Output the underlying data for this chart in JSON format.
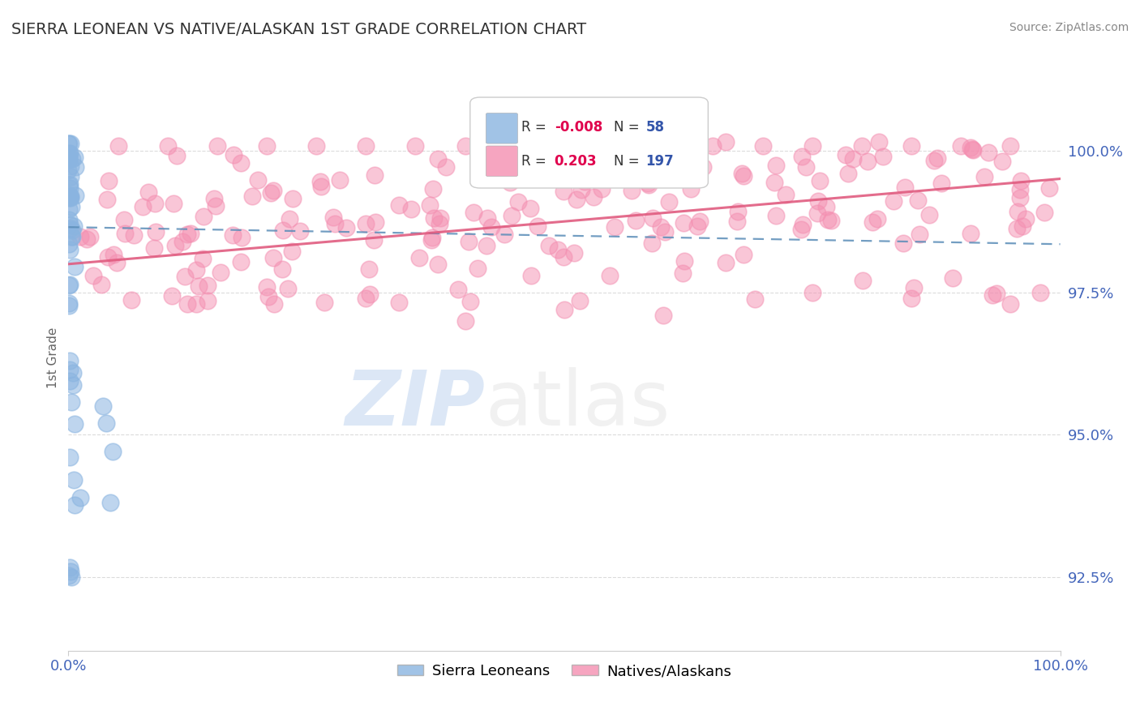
{
  "title": "SIERRA LEONEAN VS NATIVE/ALASKAN 1ST GRADE CORRELATION CHART",
  "source_text": "Source: ZipAtlas.com",
  "ylabel": "1st Grade",
  "watermark_zip": "ZIP",
  "watermark_atlas": "atlas",
  "xlim": [
    0.0,
    100.0
  ],
  "ylim": [
    91.2,
    101.5
  ],
  "yticks": [
    92.5,
    95.0,
    97.5,
    100.0
  ],
  "xticks": [
    0.0,
    100.0
  ],
  "xticklabels": [
    "0.0%",
    "100.0%"
  ],
  "yticklabels": [
    "92.5%",
    "95.0%",
    "97.5%",
    "100.0%"
  ],
  "blue_color": "#8AB4E0",
  "pink_color": "#F48FB1",
  "blue_line_color": "#5B8DB8",
  "pink_line_color": "#E05C80",
  "blue_R": -0.008,
  "blue_N": 58,
  "pink_R": 0.203,
  "pink_N": 197,
  "legend_R_color": "#E0004D",
  "legend_N_color": "#3355AA",
  "tick_color": "#4466BB",
  "grid_color": "#CCCCCC",
  "source_color": "#888888",
  "ylabel_color": "#666666",
  "title_color": "#333333"
}
